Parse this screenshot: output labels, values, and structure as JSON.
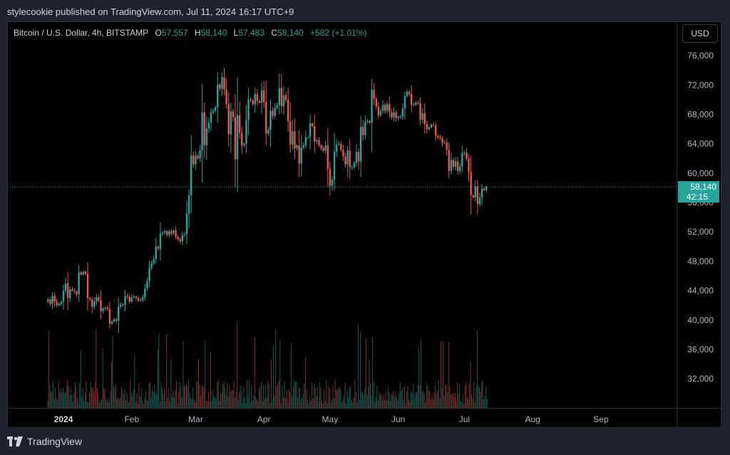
{
  "header": {
    "published_by": "stylecookie published on TradingView.com, Jul 11, 2024 16:17 UTC+9"
  },
  "legend": {
    "symbol": "Bitcoin / U.S. Dollar, 4h, BITSTAMP",
    "open_label": "O",
    "open": "57,557",
    "high_label": "H",
    "high": "58,140",
    "low_label": "L",
    "low": "57,483",
    "close_label": "C",
    "close": "58,140",
    "change": "+582 (+1.01%)"
  },
  "currency_button": "USD",
  "price_tag": {
    "price": "58,140",
    "countdown": "42:15"
  },
  "footer": {
    "brand": "TradingView"
  },
  "colors": {
    "up": "#26a69a",
    "down": "#ef5350",
    "background": "#000000",
    "axis_text": "#b2b5be"
  },
  "chart_data": {
    "type": "candlestick",
    "title": "Bitcoin / U.S. Dollar, 4h, BITSTAMP",
    "x_ticks": [
      "2024",
      "Feb",
      "Mar",
      "Apr",
      "May",
      "Jun",
      "Jul",
      "Aug",
      "Sep"
    ],
    "y_ticks": [
      "76,000",
      "72,000",
      "68,000",
      "64,000",
      "60,000",
      "56,000",
      "52,000",
      "48,000",
      "44,000",
      "40,000",
      "36,000",
      "32,000"
    ],
    "ylim": [
      29000,
      80000
    ],
    "last_price": 58140,
    "grid": false,
    "series": [
      {
        "values": [
          {
            "date": "2023-12-25",
            "close": 42800
          },
          {
            "date": "2023-12-26",
            "close": 42200
          },
          {
            "date": "2023-12-27",
            "close": 43300
          },
          {
            "date": "2023-12-28",
            "close": 42500
          },
          {
            "date": "2023-12-29",
            "close": 42000
          },
          {
            "date": "2023-12-30",
            "close": 42200
          },
          {
            "date": "2023-12-31",
            "close": 42500
          },
          {
            "date": "2024-01-01",
            "close": 44000
          },
          {
            "date": "2024-01-02",
            "close": 45000
          },
          {
            "date": "2024-01-03",
            "close": 43000
          },
          {
            "date": "2024-01-04",
            "close": 44200
          },
          {
            "date": "2024-01-05",
            "close": 44000
          },
          {
            "date": "2024-01-06",
            "close": 43900
          },
          {
            "date": "2024-01-07",
            "close": 43500
          },
          {
            "date": "2024-01-08",
            "close": 46500
          },
          {
            "date": "2024-01-09",
            "close": 46200
          },
          {
            "date": "2024-01-10",
            "close": 46600
          },
          {
            "date": "2024-01-11",
            "close": 46300
          },
          {
            "date": "2024-01-12",
            "close": 43000
          },
          {
            "date": "2024-01-13",
            "close": 42800
          },
          {
            "date": "2024-01-14",
            "close": 41800
          },
          {
            "date": "2024-01-15",
            "close": 42500
          },
          {
            "date": "2024-01-16",
            "close": 43100
          },
          {
            "date": "2024-01-17",
            "close": 42700
          },
          {
            "date": "2024-01-18",
            "close": 41200
          },
          {
            "date": "2024-01-19",
            "close": 41600
          },
          {
            "date": "2024-01-20",
            "close": 41700
          },
          {
            "date": "2024-01-21",
            "close": 41500
          },
          {
            "date": "2024-01-22",
            "close": 39500
          },
          {
            "date": "2024-01-23",
            "close": 39800
          },
          {
            "date": "2024-01-24",
            "close": 40100
          },
          {
            "date": "2024-01-25",
            "close": 39900
          },
          {
            "date": "2024-01-26",
            "close": 41800
          },
          {
            "date": "2024-01-27",
            "close": 42100
          },
          {
            "date": "2024-01-28",
            "close": 42000
          },
          {
            "date": "2024-01-29",
            "close": 43300
          },
          {
            "date": "2024-01-30",
            "close": 43200
          },
          {
            "date": "2024-01-31",
            "close": 42500
          },
          {
            "date": "2024-02-01",
            "close": 43100
          },
          {
            "date": "2024-02-02",
            "close": 43200
          },
          {
            "date": "2024-02-03",
            "close": 43000
          },
          {
            "date": "2024-02-04",
            "close": 42600
          },
          {
            "date": "2024-02-05",
            "close": 42700
          },
          {
            "date": "2024-02-06",
            "close": 43100
          },
          {
            "date": "2024-02-07",
            "close": 44300
          },
          {
            "date": "2024-02-08",
            "close": 45300
          },
          {
            "date": "2024-02-09",
            "close": 47100
          },
          {
            "date": "2024-02-10",
            "close": 47700
          },
          {
            "date": "2024-02-11",
            "close": 48300
          },
          {
            "date": "2024-02-12",
            "close": 50000
          },
          {
            "date": "2024-02-13",
            "close": 49700
          },
          {
            "date": "2024-02-14",
            "close": 51800
          },
          {
            "date": "2024-02-15",
            "close": 51900
          },
          {
            "date": "2024-02-16",
            "close": 52100
          },
          {
            "date": "2024-02-17",
            "close": 51600
          },
          {
            "date": "2024-02-18",
            "close": 52100
          },
          {
            "date": "2024-02-19",
            "close": 51800
          },
          {
            "date": "2024-02-20",
            "close": 52200
          },
          {
            "date": "2024-02-21",
            "close": 51300
          },
          {
            "date": "2024-02-22",
            "close": 51000
          },
          {
            "date": "2024-02-23",
            "close": 50700
          },
          {
            "date": "2024-02-24",
            "close": 51600
          },
          {
            "date": "2024-02-25",
            "close": 51700
          },
          {
            "date": "2024-02-26",
            "close": 54500
          },
          {
            "date": "2024-02-27",
            "close": 57000
          },
          {
            "date": "2024-02-28",
            "close": 62400
          },
          {
            "date": "2024-02-29",
            "close": 61200
          },
          {
            "date": "2024-03-01",
            "close": 62400
          },
          {
            "date": "2024-03-02",
            "close": 62000
          },
          {
            "date": "2024-03-03",
            "close": 63100
          },
          {
            "date": "2024-03-04",
            "close": 68300
          },
          {
            "date": "2024-03-05",
            "close": 63800
          },
          {
            "date": "2024-03-06",
            "close": 66100
          },
          {
            "date": "2024-03-07",
            "close": 66900
          },
          {
            "date": "2024-03-08",
            "close": 68300
          },
          {
            "date": "2024-03-09",
            "close": 68500
          },
          {
            "date": "2024-03-10",
            "close": 69000
          },
          {
            "date": "2024-03-11",
            "close": 72100
          },
          {
            "date": "2024-03-12",
            "close": 71500
          },
          {
            "date": "2024-03-13",
            "close": 73100
          },
          {
            "date": "2024-03-14",
            "close": 71400
          },
          {
            "date": "2024-03-15",
            "close": 69400
          },
          {
            "date": "2024-03-16",
            "close": 65300
          },
          {
            "date": "2024-03-17",
            "close": 68400
          },
          {
            "date": "2024-03-18",
            "close": 67600
          },
          {
            "date": "2024-03-19",
            "close": 61900
          },
          {
            "date": "2024-03-20",
            "close": 67900
          },
          {
            "date": "2024-03-21",
            "close": 65500
          },
          {
            "date": "2024-03-22",
            "close": 63800
          },
          {
            "date": "2024-03-23",
            "close": 64000
          },
          {
            "date": "2024-03-24",
            "close": 67200
          },
          {
            "date": "2024-03-25",
            "close": 70000
          },
          {
            "date": "2024-03-26",
            "close": 69900
          },
          {
            "date": "2024-03-27",
            "close": 69400
          },
          {
            "date": "2024-03-28",
            "close": 70800
          },
          {
            "date": "2024-03-29",
            "close": 69800
          },
          {
            "date": "2024-03-30",
            "close": 69600
          },
          {
            "date": "2024-03-31",
            "close": 71300
          },
          {
            "date": "2024-04-01",
            "close": 69700
          },
          {
            "date": "2024-04-02",
            "close": 65400
          },
          {
            "date": "2024-04-03",
            "close": 65900
          },
          {
            "date": "2024-04-04",
            "close": 68500
          },
          {
            "date": "2024-04-05",
            "close": 67800
          },
          {
            "date": "2024-04-06",
            "close": 68900
          },
          {
            "date": "2024-04-07",
            "close": 69300
          },
          {
            "date": "2024-04-08",
            "close": 71600
          },
          {
            "date": "2024-04-09",
            "close": 69100
          },
          {
            "date": "2024-04-10",
            "close": 70600
          },
          {
            "date": "2024-04-11",
            "close": 70000
          },
          {
            "date": "2024-04-12",
            "close": 67100
          },
          {
            "date": "2024-04-13",
            "close": 63900
          },
          {
            "date": "2024-04-14",
            "close": 65700
          },
          {
            "date": "2024-04-15",
            "close": 63400
          },
          {
            "date": "2024-04-16",
            "close": 63800
          },
          {
            "date": "2024-04-17",
            "close": 61300
          },
          {
            "date": "2024-04-18",
            "close": 63500
          },
          {
            "date": "2024-04-19",
            "close": 63800
          },
          {
            "date": "2024-04-20",
            "close": 64900
          },
          {
            "date": "2024-04-21",
            "close": 64900
          },
          {
            "date": "2024-04-22",
            "close": 66800
          },
          {
            "date": "2024-04-23",
            "close": 66400
          },
          {
            "date": "2024-04-24",
            "close": 64300
          },
          {
            "date": "2024-04-25",
            "close": 64500
          },
          {
            "date": "2024-04-26",
            "close": 63800
          },
          {
            "date": "2024-04-27",
            "close": 63400
          },
          {
            "date": "2024-04-28",
            "close": 63100
          },
          {
            "date": "2024-04-29",
            "close": 63800
          },
          {
            "date": "2024-04-30",
            "close": 60600
          },
          {
            "date": "2024-05-01",
            "close": 58300
          },
          {
            "date": "2024-05-02",
            "close": 59100
          },
          {
            "date": "2024-05-03",
            "close": 62900
          },
          {
            "date": "2024-05-04",
            "close": 63900
          },
          {
            "date": "2024-05-05",
            "close": 64000
          },
          {
            "date": "2024-05-06",
            "close": 63200
          },
          {
            "date": "2024-05-07",
            "close": 62300
          },
          {
            "date": "2024-05-08",
            "close": 61200
          },
          {
            "date": "2024-05-09",
            "close": 63100
          },
          {
            "date": "2024-05-10",
            "close": 60800
          },
          {
            "date": "2024-05-11",
            "close": 60800
          },
          {
            "date": "2024-05-12",
            "close": 61400
          },
          {
            "date": "2024-05-13",
            "close": 62900
          },
          {
            "date": "2024-05-14",
            "close": 61600
          },
          {
            "date": "2024-05-15",
            "close": 66300
          },
          {
            "date": "2024-05-16",
            "close": 65200
          },
          {
            "date": "2024-05-17",
            "close": 67000
          },
          {
            "date": "2024-05-18",
            "close": 67100
          },
          {
            "date": "2024-05-19",
            "close": 66900
          },
          {
            "date": "2024-05-20",
            "close": 71400
          },
          {
            "date": "2024-05-21",
            "close": 70100
          },
          {
            "date": "2024-05-22",
            "close": 69100
          },
          {
            "date": "2024-05-23",
            "close": 67900
          },
          {
            "date": "2024-05-24",
            "close": 68500
          },
          {
            "date": "2024-05-25",
            "close": 69300
          },
          {
            "date": "2024-05-26",
            "close": 68500
          },
          {
            "date": "2024-05-27",
            "close": 69400
          },
          {
            "date": "2024-05-28",
            "close": 68300
          },
          {
            "date": "2024-05-29",
            "close": 67600
          },
          {
            "date": "2024-05-30",
            "close": 68300
          },
          {
            "date": "2024-05-31",
            "close": 67500
          },
          {
            "date": "2024-06-01",
            "close": 67700
          },
          {
            "date": "2024-06-02",
            "close": 67700
          },
          {
            "date": "2024-06-03",
            "close": 68800
          },
          {
            "date": "2024-06-04",
            "close": 70500
          },
          {
            "date": "2024-06-05",
            "close": 71100
          },
          {
            "date": "2024-06-06",
            "close": 70800
          },
          {
            "date": "2024-06-07",
            "close": 69300
          },
          {
            "date": "2024-06-08",
            "close": 69300
          },
          {
            "date": "2024-06-09",
            "close": 69600
          },
          {
            "date": "2024-06-10",
            "close": 69500
          },
          {
            "date": "2024-06-11",
            "close": 67300
          },
          {
            "date": "2024-06-12",
            "close": 68200
          },
          {
            "date": "2024-06-13",
            "close": 66700
          },
          {
            "date": "2024-06-14",
            "close": 66000
          },
          {
            "date": "2024-06-15",
            "close": 66200
          },
          {
            "date": "2024-06-16",
            "close": 66600
          },
          {
            "date": "2024-06-17",
            "close": 66500
          },
          {
            "date": "2024-06-18",
            "close": 65100
          },
          {
            "date": "2024-06-19",
            "close": 64900
          },
          {
            "date": "2024-06-20",
            "close": 64800
          },
          {
            "date": "2024-06-21",
            "close": 64100
          },
          {
            "date": "2024-06-22",
            "close": 64200
          },
          {
            "date": "2024-06-23",
            "close": 63200
          },
          {
            "date": "2024-06-24",
            "close": 60300
          },
          {
            "date": "2024-06-25",
            "close": 61800
          },
          {
            "date": "2024-06-26",
            "close": 60900
          },
          {
            "date": "2024-06-27",
            "close": 61600
          },
          {
            "date": "2024-06-28",
            "close": 60300
          },
          {
            "date": "2024-06-29",
            "close": 60900
          },
          {
            "date": "2024-06-30",
            "close": 62700
          },
          {
            "date": "2024-07-01",
            "close": 62800
          },
          {
            "date": "2024-07-02",
            "close": 62000
          },
          {
            "date": "2024-07-03",
            "close": 60200
          },
          {
            "date": "2024-07-04",
            "close": 57000
          },
          {
            "date": "2024-07-05",
            "close": 56700
          },
          {
            "date": "2024-07-06",
            "close": 58200
          },
          {
            "date": "2024-07-07",
            "close": 55800
          },
          {
            "date": "2024-07-08",
            "close": 56700
          },
          {
            "date": "2024-07-09",
            "close": 57900
          },
          {
            "date": "2024-07-10",
            "close": 57700
          },
          {
            "date": "2024-07-11",
            "close": 58140
          }
        ]
      }
    ]
  }
}
